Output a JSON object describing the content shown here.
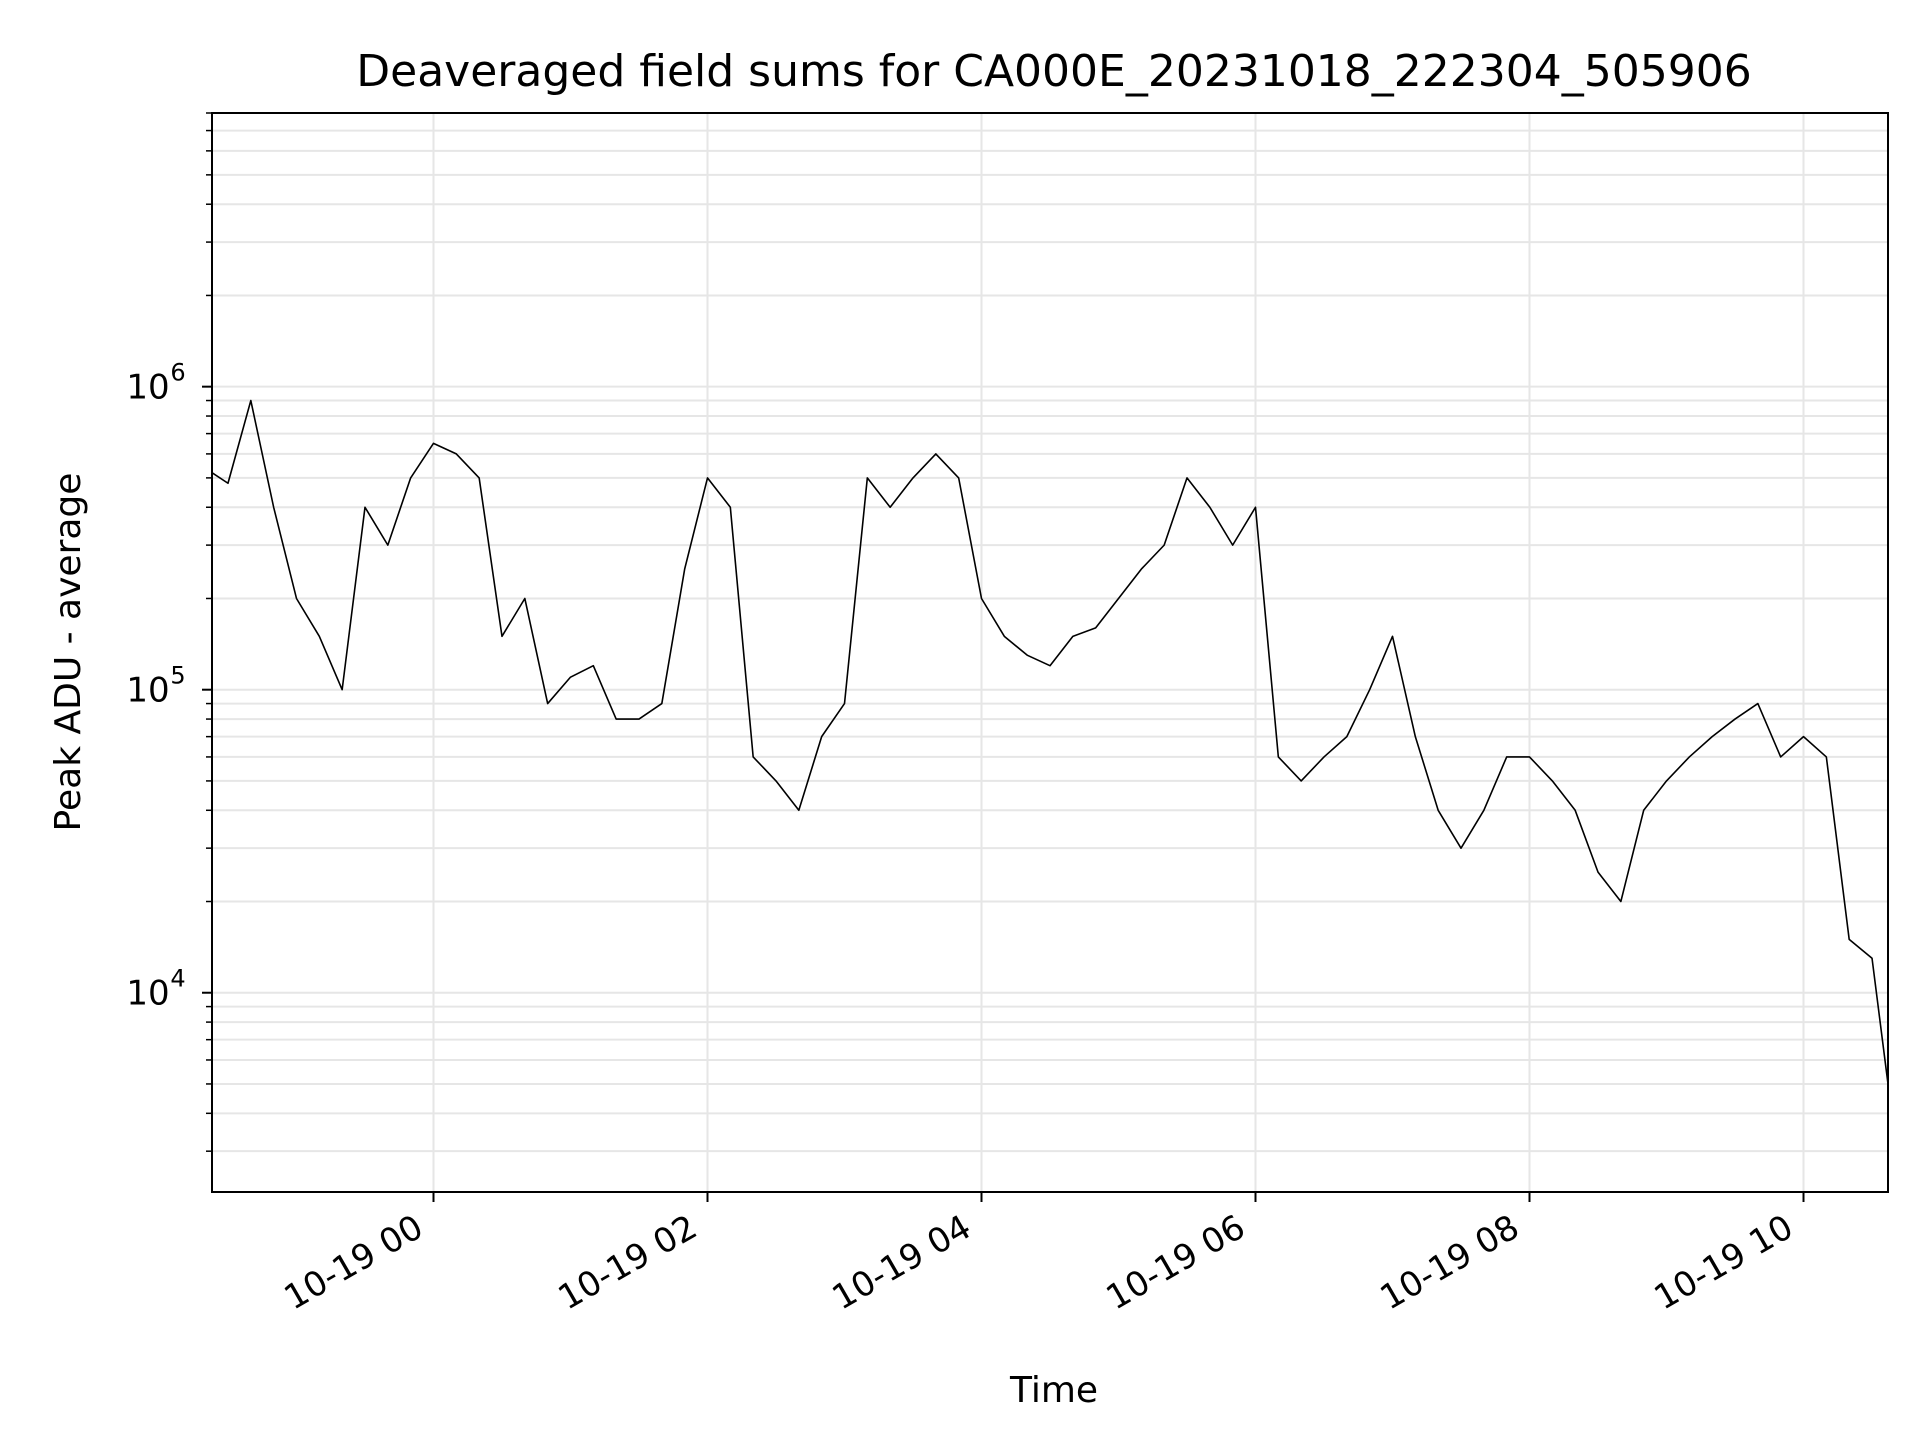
{
  "chart_data": {
    "type": "line",
    "title": "Deaveraged field sums for CA000E_20231018_222304_505906",
    "xlabel": "Time",
    "ylabel": "Peak ADU - average",
    "yscale": "log",
    "ylim": [
      2200,
      8000000
    ],
    "xlim": [
      "2023-10-18 22:23",
      "2023-10-19 10:37"
    ],
    "grid": true,
    "line_color": "#000000",
    "grid_color": "#e6e6e6",
    "x_ticks": [
      {
        "value": "2023-10-19 00:00",
        "label": "10-19 00"
      },
      {
        "value": "2023-10-19 02:00",
        "label": "10-19 02"
      },
      {
        "value": "2023-10-19 04:00",
        "label": "10-19 04"
      },
      {
        "value": "2023-10-19 06:00",
        "label": "10-19 06"
      },
      {
        "value": "2023-10-19 08:00",
        "label": "10-19 08"
      },
      {
        "value": "2023-10-19 10:00",
        "label": "10-19 10"
      }
    ],
    "y_ticks": [
      {
        "value": 10000,
        "base": "10",
        "exp": "4"
      },
      {
        "value": 100000,
        "base": "10",
        "exp": "5"
      },
      {
        "value": 1000000,
        "base": "10",
        "exp": "6"
      }
    ],
    "series": [
      {
        "x": [
          "2023-10-18 22:23",
          "2023-10-18 22:30",
          "2023-10-18 22:40",
          "2023-10-18 22:50",
          "2023-10-18 23:00",
          "2023-10-18 23:10",
          "2023-10-18 23:20",
          "2023-10-18 23:30",
          "2023-10-18 23:40",
          "2023-10-18 23:50",
          "2023-10-19 00:00",
          "2023-10-19 00:10",
          "2023-10-19 00:20",
          "2023-10-19 00:30",
          "2023-10-19 00:40",
          "2023-10-19 00:50",
          "2023-10-19 01:00",
          "2023-10-19 01:10",
          "2023-10-19 01:20",
          "2023-10-19 01:30",
          "2023-10-19 01:40",
          "2023-10-19 01:50",
          "2023-10-19 02:00",
          "2023-10-19 02:10",
          "2023-10-19 02:20",
          "2023-10-19 02:30",
          "2023-10-19 02:40",
          "2023-10-19 02:50",
          "2023-10-19 03:00",
          "2023-10-19 03:10",
          "2023-10-19 03:20",
          "2023-10-19 03:30",
          "2023-10-19 03:40",
          "2023-10-19 03:50",
          "2023-10-19 04:00",
          "2023-10-19 04:10",
          "2023-10-19 04:20",
          "2023-10-19 04:30",
          "2023-10-19 04:40",
          "2023-10-19 04:50",
          "2023-10-19 05:00",
          "2023-10-19 05:10",
          "2023-10-19 05:20",
          "2023-10-19 05:30",
          "2023-10-19 05:40",
          "2023-10-19 05:50",
          "2023-10-19 06:00",
          "2023-10-19 06:10",
          "2023-10-19 06:20",
          "2023-10-19 06:30",
          "2023-10-19 06:40",
          "2023-10-19 06:50",
          "2023-10-19 07:00",
          "2023-10-19 07:10",
          "2023-10-19 07:20",
          "2023-10-19 07:30",
          "2023-10-19 07:40",
          "2023-10-19 07:50",
          "2023-10-19 08:00",
          "2023-10-19 08:10",
          "2023-10-19 08:20",
          "2023-10-19 08:30",
          "2023-10-19 08:40",
          "2023-10-19 08:50",
          "2023-10-19 09:00",
          "2023-10-19 09:10",
          "2023-10-19 09:20",
          "2023-10-19 09:30",
          "2023-10-19 09:40",
          "2023-10-19 09:50",
          "2023-10-19 10:00",
          "2023-10-19 10:10",
          "2023-10-19 10:20",
          "2023-10-19 10:30",
          "2023-10-19 10:37"
        ],
        "y": [
          520000,
          480000,
          900000,
          400000,
          200000,
          150000,
          100000,
          400000,
          300000,
          500000,
          650000,
          600000,
          500000,
          150000,
          200000,
          90000,
          110000,
          120000,
          80000,
          80000,
          90000,
          250000,
          500000,
          400000,
          60000,
          50000,
          40000,
          70000,
          90000,
          500000,
          400000,
          500000,
          600000,
          500000,
          200000,
          150000,
          130000,
          120000,
          150000,
          160000,
          200000,
          250000,
          300000,
          500000,
          400000,
          300000,
          400000,
          60000,
          50000,
          60000,
          70000,
          100000,
          150000,
          70000,
          40000,
          30000,
          40000,
          60000,
          60000,
          50000,
          40000,
          25000,
          20000,
          40000,
          50000,
          60000,
          70000,
          80000,
          90000,
          60000,
          70000,
          60000,
          15000,
          13000,
          5000
        ]
      }
    ]
  }
}
